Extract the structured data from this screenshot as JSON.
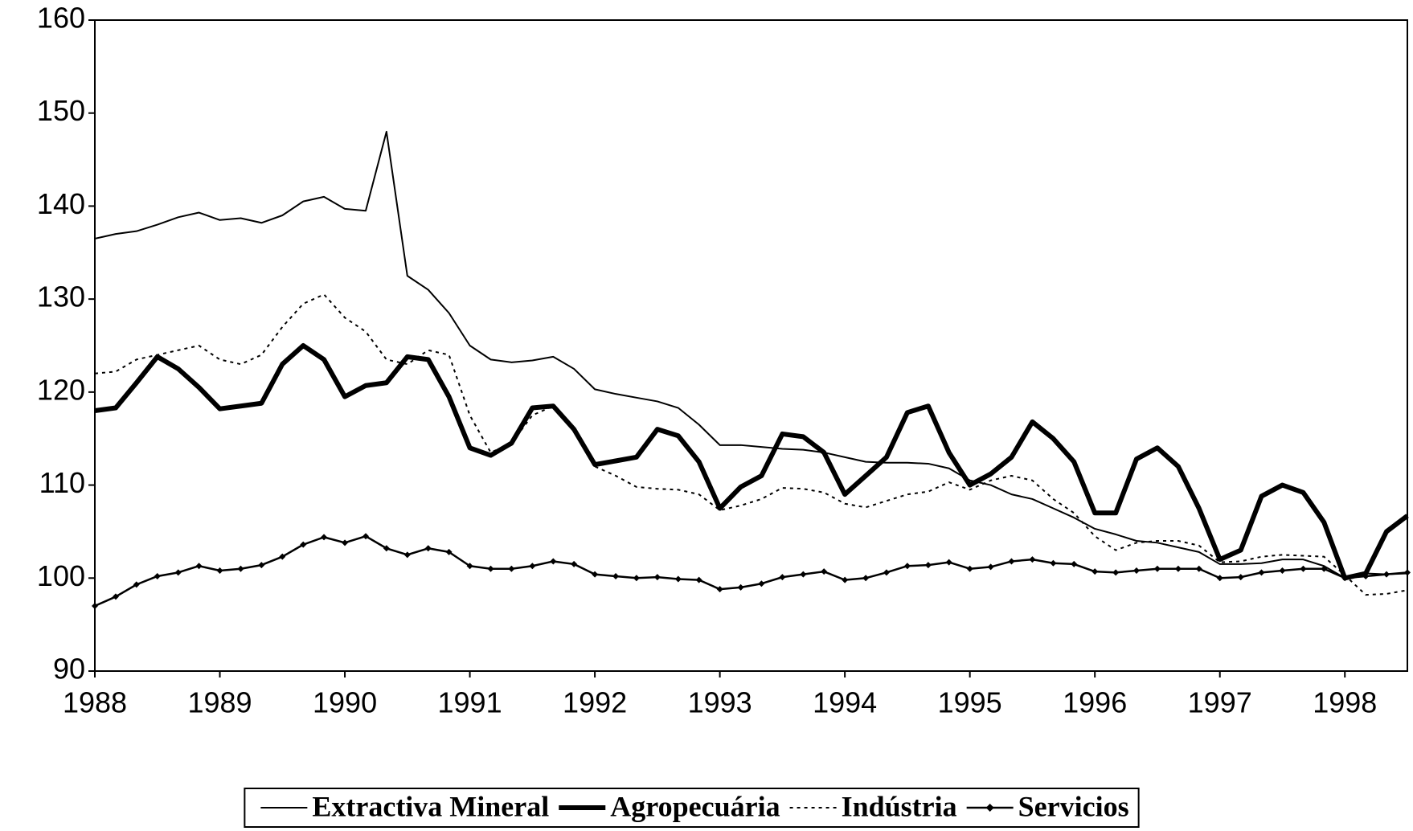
{
  "chart_data": {
    "type": "line",
    "x": [
      1988,
      1988.167,
      1988.333,
      1988.5,
      1988.667,
      1988.833,
      1989,
      1989.167,
      1989.333,
      1989.5,
      1989.667,
      1989.833,
      1990,
      1990.167,
      1990.333,
      1990.5,
      1990.667,
      1990.833,
      1991,
      1991.167,
      1991.333,
      1991.5,
      1991.667,
      1991.833,
      1992,
      1992.167,
      1992.333,
      1992.5,
      1992.667,
      1992.833,
      1993,
      1993.167,
      1993.333,
      1993.5,
      1993.667,
      1993.833,
      1994,
      1994.167,
      1994.333,
      1994.5,
      1994.667,
      1994.833,
      1995,
      1995.167,
      1995.333,
      1995.5,
      1995.667,
      1995.833,
      1996,
      1996.167,
      1996.333,
      1996.5,
      1996.667,
      1996.833,
      1997,
      1997.167,
      1997.333,
      1997.5,
      1997.667,
      1997.833,
      1998,
      1998.167,
      1998.333,
      1998.5
    ],
    "series": [
      {
        "name": "Extractiva Mineral",
        "color": "#000000",
        "style": "thin",
        "values": [
          136.5,
          137,
          137.3,
          138,
          138.8,
          139.3,
          138.5,
          138.7,
          138.2,
          139,
          140.5,
          141,
          139.7,
          139.5,
          148,
          132.5,
          131,
          128.5,
          125,
          123.5,
          123.2,
          123.4,
          123.8,
          122.5,
          120.3,
          119.8,
          119.4,
          119,
          118.3,
          116.5,
          114.3,
          114.3,
          114.1,
          113.9,
          113.8,
          113.5,
          113,
          112.5,
          112.4,
          112.4,
          112.3,
          111.8,
          110.5,
          110,
          109,
          108.5,
          107.5,
          106.5,
          105.3,
          104.7,
          104,
          103.8,
          103.3,
          102.8,
          101.5,
          101.5,
          101.6,
          102,
          102,
          101.3,
          100,
          100.5,
          100.4,
          100.5
        ]
      },
      {
        "name": "Agropecuária",
        "color": "#000000",
        "style": "thick",
        "values": [
          118,
          118.3,
          121,
          123.8,
          122.5,
          120.5,
          118.2,
          118.5,
          118.8,
          123,
          125,
          123.5,
          119.5,
          120.7,
          121,
          123.8,
          123.5,
          119.5,
          114,
          113.2,
          114.5,
          118.3,
          118.5,
          116,
          112.2,
          112.6,
          113,
          116,
          115.3,
          112.5,
          107.5,
          109.8,
          111,
          115.5,
          115.2,
          113.5,
          109,
          111,
          113,
          117.8,
          118.5,
          113.5,
          110,
          111.2,
          113,
          116.8,
          115,
          112.5,
          107,
          107,
          112.8,
          114,
          112,
          107.5,
          102,
          103,
          108.8,
          110,
          109.2,
          106,
          100,
          100.5,
          105,
          106.7
        ]
      },
      {
        "name": "Indústria",
        "color": "#000000",
        "style": "dotted",
        "values": [
          122,
          122.2,
          123.5,
          124,
          124.5,
          125,
          123.5,
          123,
          124,
          127,
          129.5,
          130.5,
          128,
          126.5,
          123.5,
          123,
          124.5,
          124,
          117.5,
          113.5,
          114.5,
          117.5,
          118.5,
          116,
          112,
          111,
          109.8,
          109.6,
          109.5,
          109,
          107.3,
          107.8,
          108.5,
          109.7,
          109.6,
          109.2,
          108,
          107.6,
          108.3,
          109,
          109.3,
          110.3,
          109.5,
          110.5,
          111,
          110.5,
          108.5,
          107,
          104.5,
          103,
          103.8,
          104,
          104,
          103.5,
          101.7,
          101.8,
          102.3,
          102.5,
          102.4,
          102.3,
          100.3,
          98.2,
          98.3,
          98.7
        ]
      },
      {
        "name": "Servicios",
        "color": "#000000",
        "style": "markers",
        "values": [
          97,
          98,
          99.3,
          100.2,
          100.6,
          101.3,
          100.8,
          101,
          101.4,
          102.3,
          103.6,
          104.4,
          103.8,
          104.5,
          103.2,
          102.5,
          103.2,
          102.8,
          101.3,
          101,
          101,
          101.3,
          101.8,
          101.5,
          100.4,
          100.2,
          100,
          100.1,
          99.9,
          99.8,
          98.8,
          99,
          99.4,
          100.1,
          100.4,
          100.7,
          99.8,
          100,
          100.6,
          101.3,
          101.4,
          101.7,
          101,
          101.2,
          101.8,
          102,
          101.6,
          101.5,
          100.7,
          100.6,
          100.8,
          101,
          101,
          101,
          100,
          100.1,
          100.6,
          100.8,
          101,
          101,
          100,
          100.2,
          100.4,
          100.6
        ]
      }
    ],
    "xlim": [
      1988,
      1998.5
    ],
    "xticks": [
      1988,
      1989,
      1990,
      1991,
      1992,
      1993,
      1994,
      1995,
      1996,
      1997,
      1998
    ],
    "ylim": [
      90,
      160
    ],
    "yticks": [
      90,
      100,
      110,
      120,
      130,
      140,
      150,
      160
    ],
    "legend": "bottom"
  }
}
